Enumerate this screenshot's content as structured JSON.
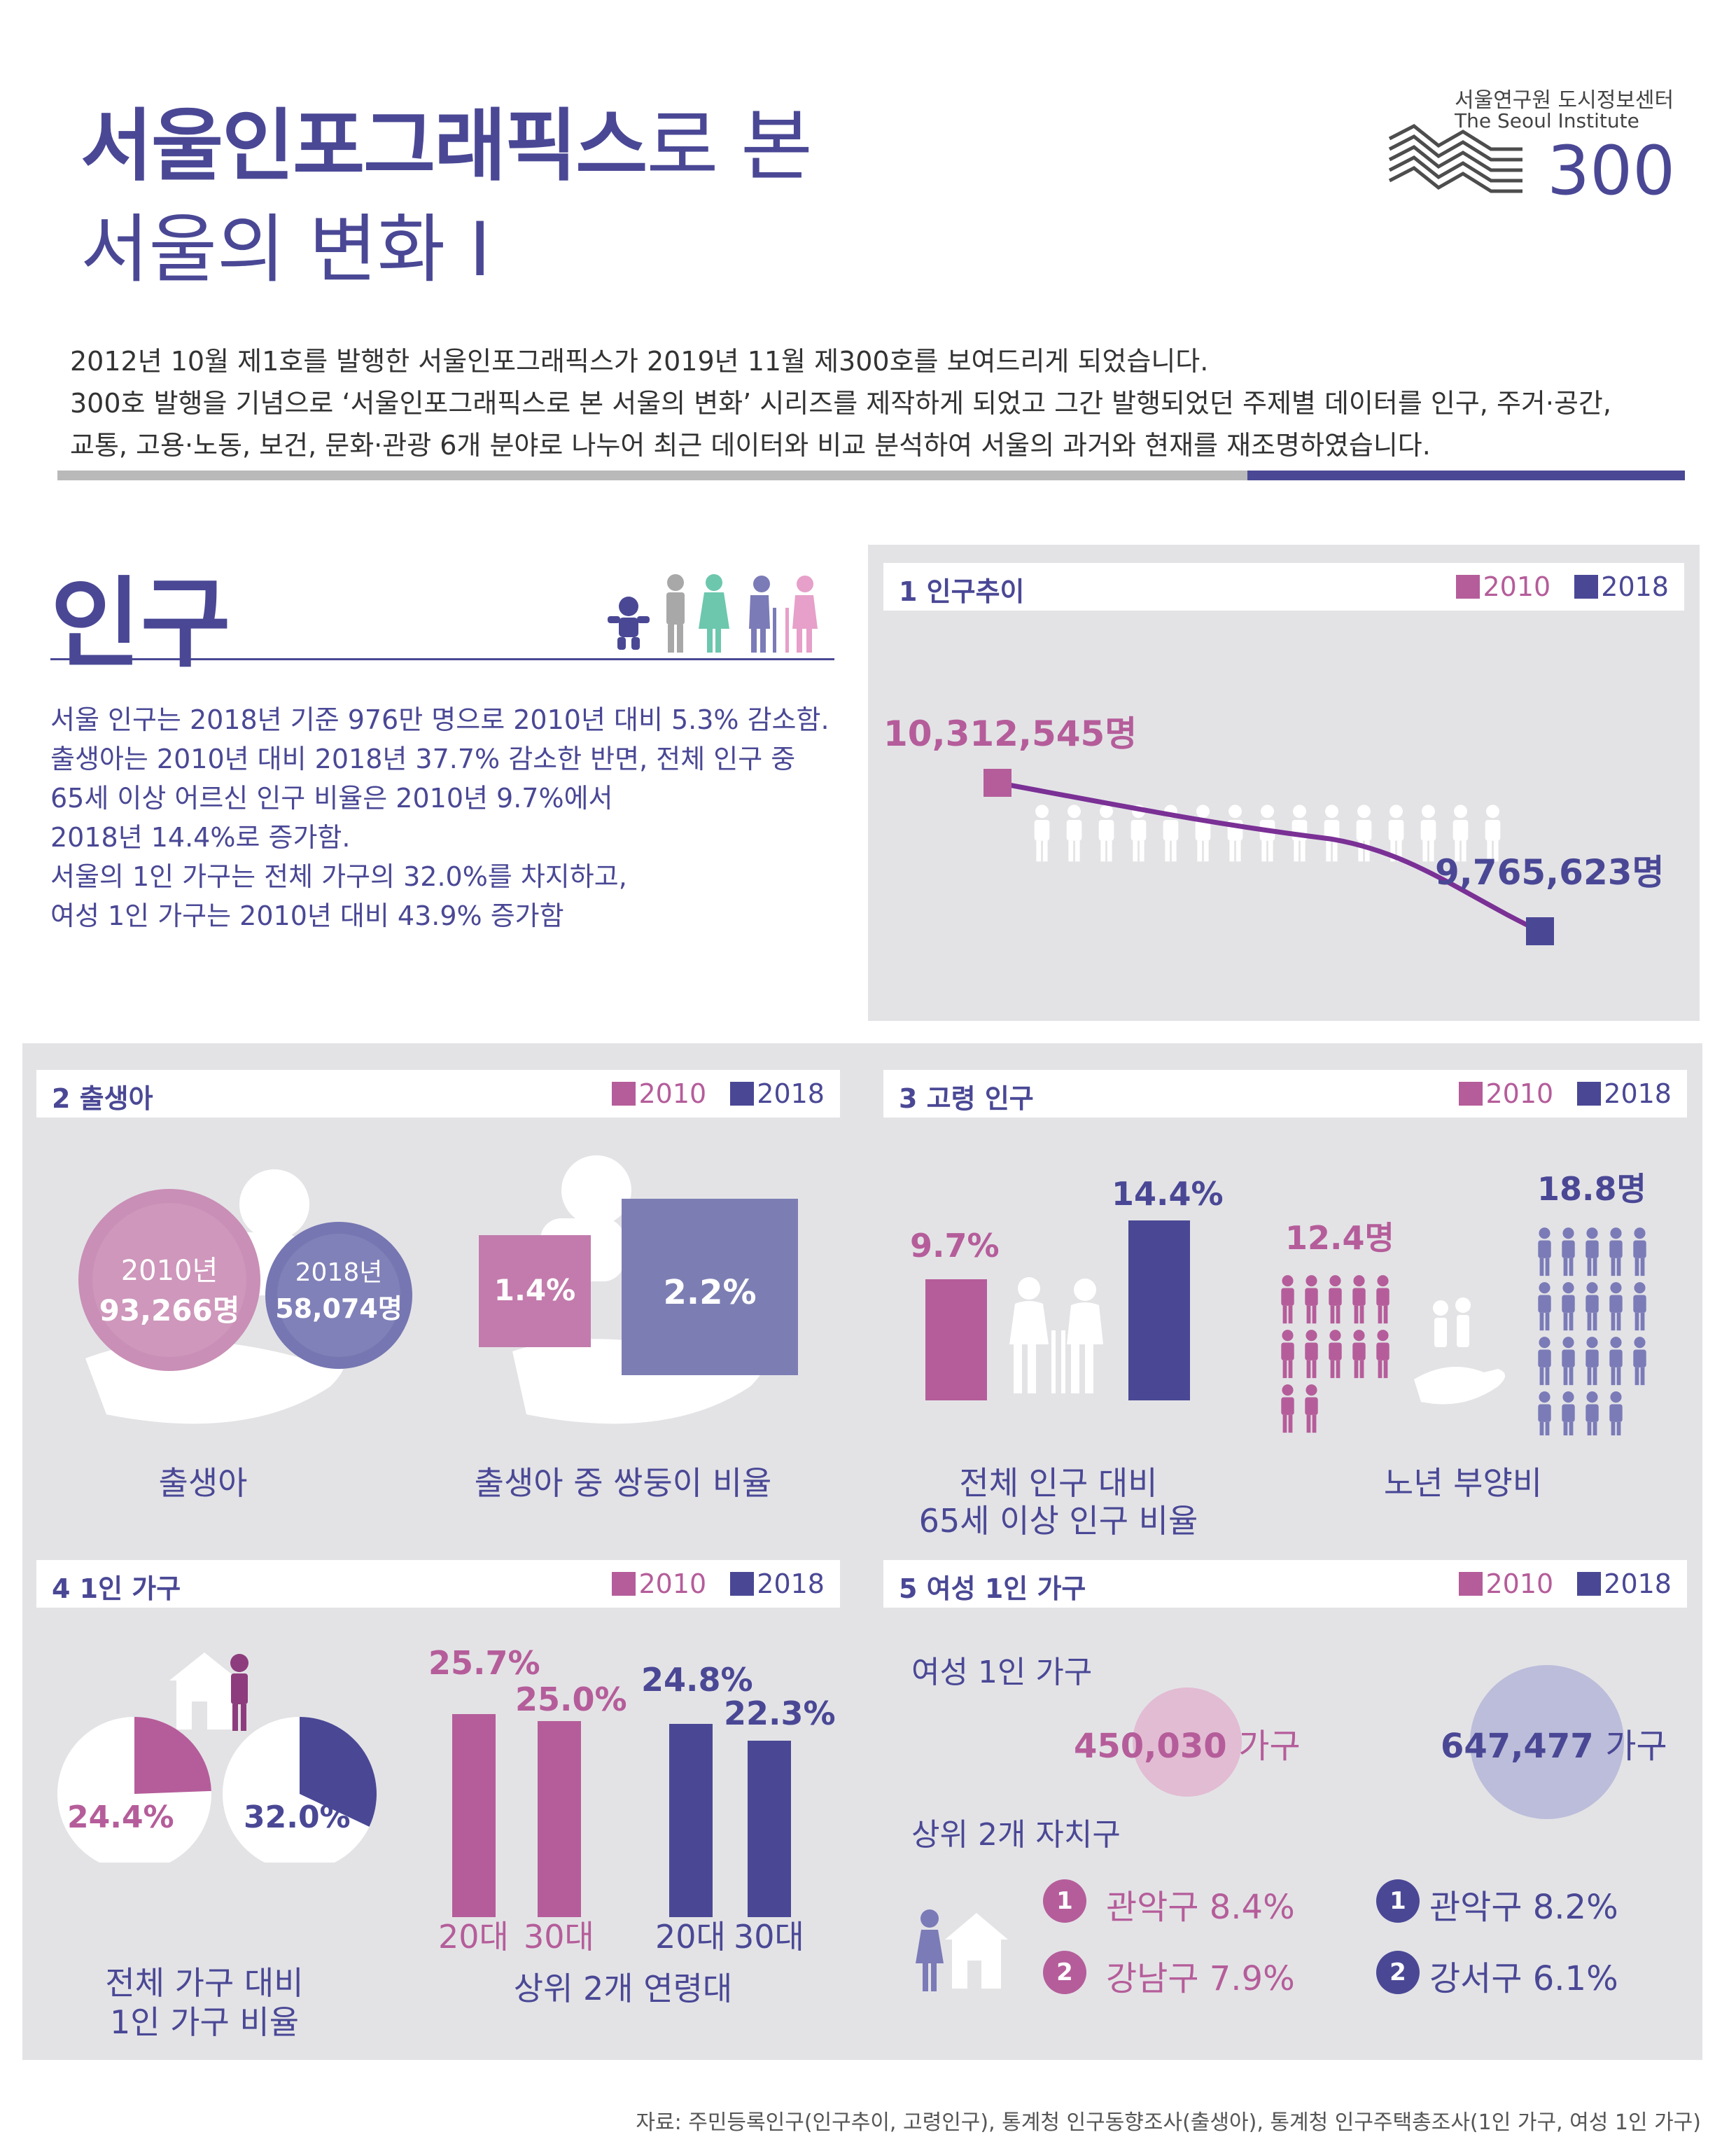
{
  "header": {
    "title_bold": "서울인포그래픽스",
    "title_rest": "로 본",
    "title_line2": "서울의 변화 I",
    "org_name": "서울연구원 도시정보센터",
    "org_en": "The Seoul Institute",
    "org_number": "300"
  },
  "intro": [
    "2012년 10월 제1호를 발행한 서울인포그래픽스가 2019년 11월 제300호를 보여드리게 되었습니다.",
    "300호 발행을 기념으로 ‘서울인포그래픽스로 본 서울의 변화’ 시리즈를 제작하게 되었고 그간 발행되었던 주제별 데이터를 인구, 주거·공간,",
    "교통, 고용·노동, 보건, 문화·관광 6개 분야로 나누어 최근 데이터와 비교 분석하여 서울의 과거와 현재를 재조명하였습니다."
  ],
  "section": {
    "title": "인구",
    "summary": [
      "서울 인구는 2018년 기준 976만 명으로 2010년 대비 5.3% 감소함.",
      "출생아는 2010년 대비 2018년 37.7% 감소한 반면, 전체 인구 중",
      "65세 이상 어르신 인구 비율은 2010년 9.7%에서",
      "2018년 14.4%로 증가함.",
      "서울의 1인 가구는 전체 가구의 32.0%를 차지하고,",
      "여성 1인 가구는 2010년 대비 43.9% 증가함"
    ]
  },
  "legend": {
    "y2010": "2010",
    "y2018": "2018"
  },
  "colors": {
    "c2010": "#b55d9a",
    "c2018": "#4a4895",
    "line": "#7a3095",
    "panel": "#e3e3e6"
  },
  "panel1": {
    "title": "1  인구추이",
    "v2010": "10,312,545명",
    "v2018": "9,765,623명"
  },
  "panel2": {
    "title": "2  출생아",
    "year2010": "2010년",
    "births2010": "93,266명",
    "year2018": "2018년",
    "births2018": "58,074명",
    "label_births": "출생아",
    "twin2010": "1.4%",
    "twin2018": "2.2%",
    "label_twins": "출생아 중 쌍둥이 비율"
  },
  "panel3": {
    "title": "3  고령 인구",
    "elder2010": "9.7%",
    "elder2018": "14.4%",
    "label_elder_l1": "전체 인구 대비",
    "label_elder_l2": "65세 이상 인구 비율",
    "dep2010": "12.4명",
    "dep2018": "18.8명",
    "label_dep": "노년 부양비"
  },
  "panel4": {
    "title": "4  1인 가구",
    "share2010": "24.4%",
    "share2018": "32.0%",
    "label_share_l1": "전체 가구 대비",
    "label_share_l2": "1인 가구 비율",
    "bar_vals": [
      "25.7%",
      "25.0%",
      "24.8%",
      "22.3%"
    ],
    "age20": "20대",
    "age30": "30대",
    "label_age": "상위 2개 연령대"
  },
  "panel5": {
    "title": "5  여성 1인 가구",
    "subtitle": "여성 1인 가구",
    "hh2010": "450,030",
    "hh2018": "647,477",
    "unit": "가구",
    "top_label": "상위 2개 자치구",
    "rank1": "1",
    "rank2": "2",
    "d2010_1": "관악구 8.4%",
    "d2010_2": "강남구 7.9%",
    "d2018_1": "관악구 8.2%",
    "d2018_2": "강서구 6.1%"
  },
  "source": "자료: 주민등록인구(인구추이, 고령인구), 통계청 인구동향조사(출생아), 통계청 인구주택총조사(1인 가구, 여성 1인 가구)"
}
